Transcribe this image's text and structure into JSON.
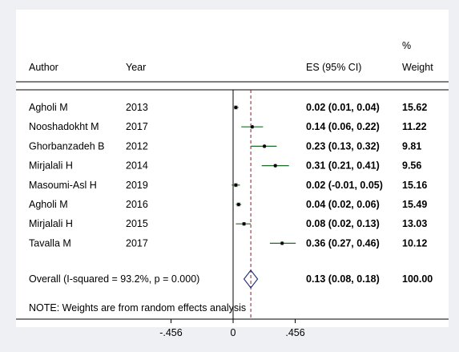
{
  "chart_data": {
    "type": "forest",
    "columns": {
      "author": "Author",
      "year": "Year",
      "es": "ES (95% CI)",
      "weight_top": "%",
      "weight": "Weight"
    },
    "studies": [
      {
        "author": "Agholi M",
        "year": "2013",
        "es": 0.02,
        "lo": 0.01,
        "hi": 0.04,
        "es_label": "0.02 (0.01, 0.04)",
        "weight": "15.62"
      },
      {
        "author": "Nooshadokht M",
        "year": "2017",
        "es": 0.14,
        "lo": 0.06,
        "hi": 0.22,
        "es_label": "0.14 (0.06, 0.22)",
        "weight": "11.22"
      },
      {
        "author": "Ghorbanzadeh B",
        "year": "2012",
        "es": 0.23,
        "lo": 0.13,
        "hi": 0.32,
        "es_label": "0.23 (0.13, 0.32)",
        "weight": "9.81"
      },
      {
        "author": "Mirjalali H",
        "year": "2014",
        "es": 0.31,
        "lo": 0.21,
        "hi": 0.41,
        "es_label": "0.31 (0.21, 0.41)",
        "weight": "9.56"
      },
      {
        "author": "Masoumi-Asl H",
        "year": "2019",
        "es": 0.02,
        "lo": -0.01,
        "hi": 0.05,
        "es_label": "0.02 (-0.01, 0.05)",
        "weight": "15.16"
      },
      {
        "author": "Agholi M",
        "year": "2016",
        "es": 0.04,
        "lo": 0.02,
        "hi": 0.06,
        "es_label": "0.04 (0.02, 0.06)",
        "weight": "15.49"
      },
      {
        "author": "Mirjalali H",
        "year": "2015",
        "es": 0.08,
        "lo": 0.02,
        "hi": 0.13,
        "es_label": "0.08 (0.02, 0.13)",
        "weight": "13.03"
      },
      {
        "author": "Tavalla M",
        "year": "2017",
        "es": 0.36,
        "lo": 0.27,
        "hi": 0.46,
        "es_label": "0.36 (0.27, 0.46)",
        "weight": "10.12"
      }
    ],
    "overall": {
      "label": "Overall  (I-squared = 93.2%, p = 0.000)",
      "es": 0.13,
      "lo": 0.08,
      "hi": 0.18,
      "es_label": "0.13 (0.08, 0.18)",
      "weight": "100.00"
    },
    "note": "NOTE: Weights are from random effects analysis",
    "x_axis": {
      "ticks": [
        -0.456,
        0,
        0.456
      ],
      "tick_labels": [
        "-.456",
        "0",
        ".456"
      ]
    },
    "colors": {
      "background": "#eef0f3",
      "panel": "#ffffff",
      "ci_line": "#1e6b2a",
      "overall_line": "#8b1a2b",
      "diamond": "#1f2a7a",
      "zero_line": "#000000"
    }
  }
}
